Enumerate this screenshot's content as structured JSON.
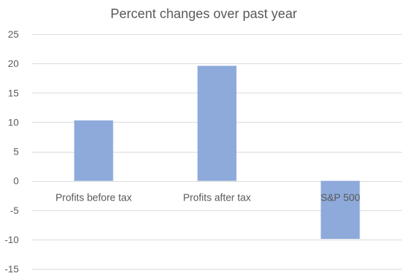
{
  "chart_data": {
    "type": "bar",
    "title": "Percent changes over past year",
    "xlabel": "",
    "ylabel": "",
    "categories": [
      "Profits before tax",
      "Profits after tax",
      "S&P 500"
    ],
    "values": [
      10.3,
      19.6,
      -9.9
    ],
    "ylim": [
      -15,
      25
    ],
    "yticks": [
      25,
      20,
      15,
      10,
      5,
      0,
      -5,
      -10,
      -15
    ],
    "grid": true,
    "legend": "none",
    "bar_color": "#8eaadb"
  }
}
